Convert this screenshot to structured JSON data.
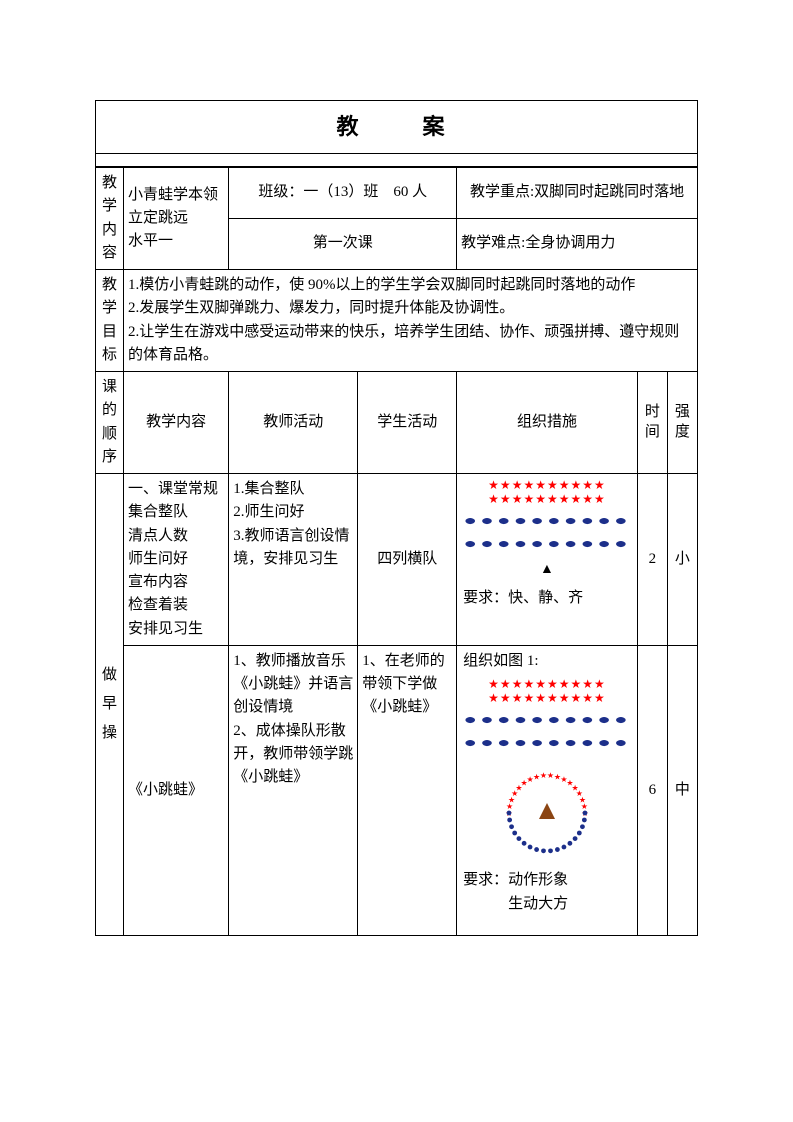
{
  "page_title_1": "教",
  "page_title_2": "案",
  "labels": {
    "content_v": [
      "教",
      "学",
      "内",
      "容"
    ],
    "goals_v": [
      "教",
      "学",
      "目",
      "标"
    ],
    "sequence_v": [
      "课",
      "的",
      "顺",
      "序"
    ],
    "morning_v": [
      "做",
      "早",
      "操"
    ]
  },
  "header": {
    "topic": "小青蛙学本领立定跳远\n水平一",
    "class_label": "班级：一（13）班",
    "people": "60 人",
    "lesson_no": "第一次课",
    "focus": "教学重点:双脚同时起跳同时落地",
    "difficulty": "教学难点:全身协调用力"
  },
  "goals_text": "1.模仿小青蛙跳的动作，使 90%以上的学生学会双脚同时起跳同时落地的动作\n2.发展学生双脚弹跳力、爆发力，同时提升体能及协调性。\n2.让学生在游戏中感受运动带来的快乐，培养学生团结、协作、顽强拼搏、遵守规则的体育品格。",
  "table_headers": {
    "col_content": "教学内容",
    "col_teacher": "教师活动",
    "col_student": "学生活动",
    "col_org": "组织措施",
    "col_time": "时间",
    "col_intensity": "强度"
  },
  "rows": [
    {
      "content": "一、课堂常规\n集合整队\n清点人数\n师生问好\n宣布内容\n检查着装\n安排见习生",
      "teacher": "1.集合整队\n2.师生问好\n3.教师语言创设情境，安排见习生",
      "student": "四列横队",
      "time": "2",
      "intensity": "小",
      "formation": {
        "star_rows": 2,
        "stars_per_row": 10,
        "oval_rows": 2,
        "ovals_per_row": 10,
        "triangle_color": "#000000",
        "star_color": "#ff0000",
        "oval_color": "#1c2f8a",
        "requirement": "要求：快、静、齐"
      }
    },
    {
      "content": "《小跳蛙》",
      "teacher": "1、教师播放音乐《小跳蛙》并语言创设情境\n2、成体操队形散开，教师带领学跳《小跳蛙》",
      "student": "1、在老师的带领下学做《小跳蛙》",
      "time": "6",
      "intensity": "中",
      "org_head": "组织如图 1:",
      "formation": {
        "star_rows": 2,
        "stars_per_row": 10,
        "oval_rows": 2,
        "ovals_per_row": 10,
        "star_color": "#ff0000",
        "oval_color": "#1c2f8a",
        "circle": {
          "star_count": 18,
          "dot_count": 18,
          "star_color": "#ff0000",
          "dot_color": "#1c2f8a",
          "triangle_color": "#8b4513",
          "radius": 38
        },
        "requirement": "要求：动作形象\n　　　生动大方"
      }
    }
  ],
  "colors": {
    "text": "#000000",
    "star": "#ff0000",
    "dot": "#1c2f8a",
    "triangle_filled": "#8b4513",
    "background": "#ffffff",
    "border": "#000000"
  }
}
